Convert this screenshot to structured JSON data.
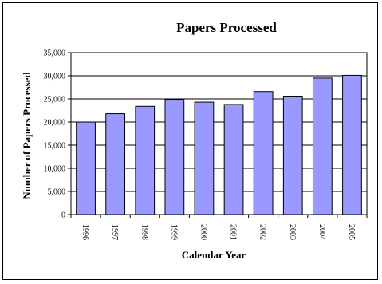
{
  "chart_data": {
    "type": "bar",
    "title": "Papers Processed",
    "xlabel": "Calendar Year",
    "ylabel": "Number of Papers Processed",
    "categories": [
      "1996",
      "1997",
      "1998",
      "1999",
      "2000",
      "2001",
      "2002",
      "2003",
      "2004",
      "2005"
    ],
    "values": [
      20000,
      21800,
      23400,
      24900,
      24300,
      23800,
      26600,
      25600,
      29500,
      30100
    ],
    "ylim": [
      0,
      35000
    ],
    "yticks": [
      "0",
      "5,000",
      "10,000",
      "15,000",
      "20,000",
      "25,000",
      "30,000",
      "35,000"
    ],
    "ytick_values": [
      0,
      5000,
      10000,
      15000,
      20000,
      25000,
      30000,
      35000
    ],
    "grid": true,
    "bar_color": "#9999ff",
    "bar_edge_color": "#000000"
  }
}
